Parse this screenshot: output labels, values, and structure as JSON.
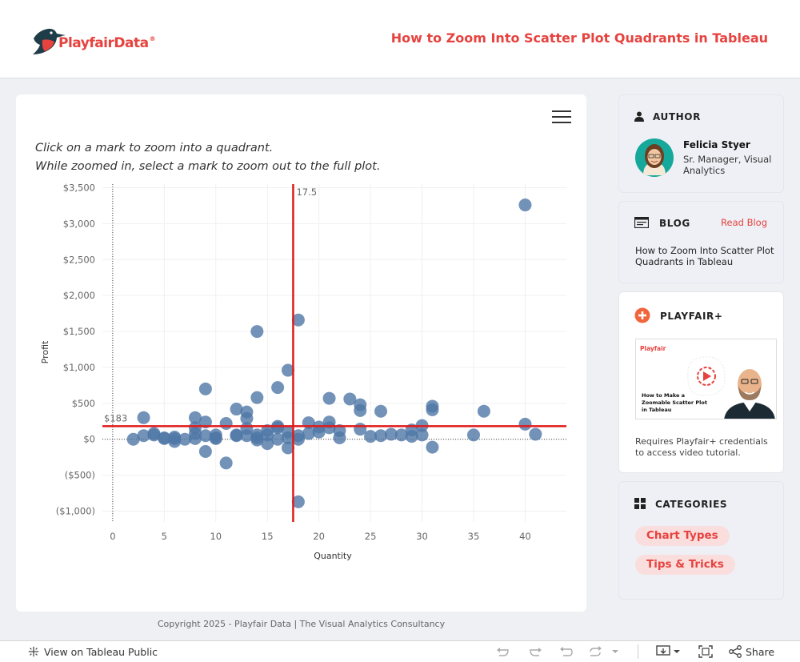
{
  "header": {
    "brand": "PlayfairData",
    "brand_mark": "®",
    "title": "How to Zoom Into Scatter Plot Quadrants in Tableau"
  },
  "main": {
    "menu_icon": "hamburger-icon",
    "instructions": [
      "Click on a mark to zoom into a quadrant.",
      "While zoomed in, select a mark to zoom out to the full plot."
    ]
  },
  "chart_data": {
    "type": "scatter",
    "xlabel": "Quantity",
    "ylabel": "Profit",
    "xlim": [
      -1,
      44
    ],
    "ylim": [
      -1150,
      3550
    ],
    "x_ticks": [
      0,
      5,
      10,
      15,
      20,
      25,
      30,
      35,
      40
    ],
    "y_ticks": [
      3500,
      3000,
      2500,
      2000,
      1500,
      1000,
      500,
      0,
      -500,
      -1000
    ],
    "y_tick_labels": [
      "$3,500",
      "$3,000",
      "$2,500",
      "$2,000",
      "$1,500",
      "$1,000",
      "$500",
      "$0",
      "($500)",
      "($1,000)"
    ],
    "reference_lines": {
      "x": 17.5,
      "x_label": "17.5",
      "y": 183,
      "y_label": "$183",
      "color": "#e11b1b"
    },
    "point_color": "#4f77a6",
    "grid": true,
    "points": [
      [
        2,
        0
      ],
      [
        3,
        300
      ],
      [
        3,
        50
      ],
      [
        4,
        60
      ],
      [
        4,
        80
      ],
      [
        5,
        10
      ],
      [
        5,
        20
      ],
      [
        6,
        30
      ],
      [
        6,
        -30
      ],
      [
        6,
        10
      ],
      [
        7,
        0
      ],
      [
        8,
        300
      ],
      [
        8,
        160
      ],
      [
        8,
        80
      ],
      [
        8,
        10
      ],
      [
        9,
        700
      ],
      [
        9,
        240
      ],
      [
        9,
        50
      ],
      [
        9,
        -170
      ],
      [
        10,
        60
      ],
      [
        10,
        20
      ],
      [
        10,
        10
      ],
      [
        11,
        220
      ],
      [
        11,
        -330
      ],
      [
        12,
        420
      ],
      [
        12,
        60
      ],
      [
        12,
        50
      ],
      [
        13,
        380
      ],
      [
        13,
        290
      ],
      [
        13,
        150
      ],
      [
        13,
        50
      ],
      [
        14,
        1500
      ],
      [
        14,
        580
      ],
      [
        14,
        60
      ],
      [
        14,
        20
      ],
      [
        14,
        -10
      ],
      [
        15,
        120
      ],
      [
        15,
        60
      ],
      [
        15,
        -60
      ],
      [
        16,
        720
      ],
      [
        16,
        180
      ],
      [
        16,
        160
      ],
      [
        16,
        0
      ],
      [
        17,
        960
      ],
      [
        17,
        100
      ],
      [
        17,
        20
      ],
      [
        17,
        -120
      ],
      [
        18,
        1660
      ],
      [
        18,
        50
      ],
      [
        18,
        0
      ],
      [
        18,
        -870
      ],
      [
        19,
        230
      ],
      [
        19,
        80
      ],
      [
        20,
        170
      ],
      [
        20,
        100
      ],
      [
        21,
        570
      ],
      [
        21,
        240
      ],
      [
        21,
        160
      ],
      [
        22,
        120
      ],
      [
        22,
        20
      ],
      [
        23,
        560
      ],
      [
        24,
        480
      ],
      [
        24,
        400
      ],
      [
        24,
        140
      ],
      [
        25,
        40
      ],
      [
        26,
        390
      ],
      [
        26,
        50
      ],
      [
        27,
        70
      ],
      [
        28,
        60
      ],
      [
        29,
        130
      ],
      [
        29,
        40
      ],
      [
        30,
        190
      ],
      [
        30,
        60
      ],
      [
        31,
        460
      ],
      [
        31,
        410
      ],
      [
        31,
        -110
      ],
      [
        35,
        60
      ],
      [
        36,
        390
      ],
      [
        40,
        3260
      ],
      [
        40,
        210
      ],
      [
        41,
        70
      ]
    ]
  },
  "copyright": "Copyright 2025 - Playfair Data | The Visual Analytics Consultancy",
  "sidebar": {
    "author": {
      "heading": "AUTHOR",
      "icon": "person-icon",
      "name": "Felicia Styer",
      "role": "Sr. Manager, Visual Analytics"
    },
    "blog": {
      "heading": "BLOG",
      "icon": "browser-window-icon",
      "link": "Read Blog",
      "title": "How to Zoom Into Scatter Plot Quadrants in Tableau"
    },
    "playfair_plus": {
      "heading": "PLAYFAIR+",
      "icon": "plus-circle-icon",
      "thumb_brand": "Playfair",
      "thumb_title": "How to Make a Zoomable Scatter Plot in Tableau",
      "note": "Requires Playfair+ credentials to access video tutorial."
    },
    "categories": {
      "heading": "CATEGORIES",
      "icon": "grid-icon",
      "items": [
        "Chart Types",
        "Tips & Tricks"
      ]
    }
  },
  "toolbar": {
    "view_label": "View on Tableau Public",
    "share_label": "Share"
  },
  "colors": {
    "accent": "#e6423e",
    "ref_line": "#e11b1b",
    "points": "#4f77a6"
  }
}
